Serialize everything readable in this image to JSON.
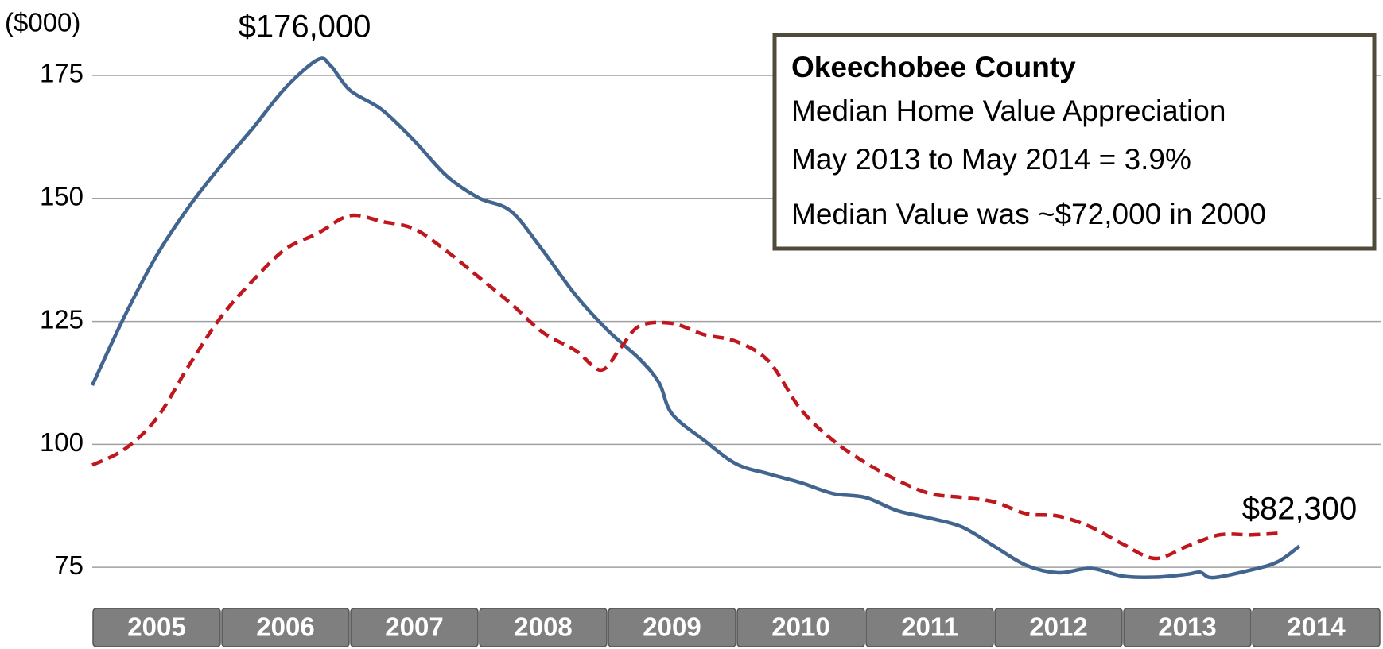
{
  "chart_data": {
    "type": "line",
    "y_label": "($000)",
    "annotations": [
      "$176,000",
      "$82,300"
    ],
    "info_box": {
      "title": "Okeechobee County",
      "lines": [
        "Median Home Value Appreciation",
        "May 2013 to May 2014 = 3.9%",
        "Median Value was ~$72,000 in 2000"
      ]
    },
    "xlim": [
      2005,
      2015
    ],
    "xticks": [
      2005,
      2006,
      2007,
      2008,
      2009,
      2010,
      2011,
      2012,
      2013,
      2014
    ],
    "ylim": [
      68.4,
      185.5
    ],
    "yticks": [
      75,
      100,
      125,
      150,
      175
    ],
    "grid": true,
    "series": [
      {
        "color": "#41658f",
        "dash": false,
        "x": [
          2005.0,
          2005.25,
          2005.5,
          2005.75,
          2006.0,
          2006.25,
          2006.5,
          2006.75,
          2006.85,
          2007.0,
          2007.25,
          2007.5,
          2007.75,
          2008.0,
          2008.25,
          2008.5,
          2008.75,
          2009.0,
          2009.25,
          2009.4,
          2009.5,
          2009.75,
          2010.0,
          2010.25,
          2010.5,
          2010.75,
          2011.0,
          2011.25,
          2011.5,
          2011.75,
          2012.0,
          2012.25,
          2012.5,
          2012.75,
          2013.0,
          2013.25,
          2013.5,
          2013.6,
          2013.7,
          2014.0,
          2014.2,
          2014.37
        ],
        "values": [
          112,
          126,
          138.4,
          148.3,
          156.7,
          164.4,
          172.5,
          178.2,
          177,
          172,
          168,
          161.7,
          154.6,
          150.1,
          147.4,
          139.3,
          130.4,
          123.2,
          117.3,
          112.5,
          106.2,
          100.8,
          96,
          94,
          92.2,
          90,
          89.2,
          86.5,
          85,
          83.2,
          79.3,
          75.4,
          73.9,
          74.8,
          73.2,
          73,
          73.6,
          74,
          72.9,
          74.5,
          76.1,
          79.3
        ]
      },
      {
        "color": "#c0161d",
        "dash": true,
        "x": [
          2005.0,
          2005.25,
          2005.5,
          2005.75,
          2006.0,
          2006.25,
          2006.5,
          2006.75,
          2007.0,
          2007.25,
          2007.5,
          2007.75,
          2008.0,
          2008.25,
          2008.5,
          2008.75,
          2008.95,
          2009.1,
          2009.25,
          2009.5,
          2009.75,
          2010.0,
          2010.25,
          2010.5,
          2010.75,
          2011.0,
          2011.25,
          2011.5,
          2011.75,
          2012.0,
          2012.25,
          2012.5,
          2012.75,
          2013.0,
          2013.25,
          2013.5,
          2013.75,
          2014.0,
          2014.25
        ],
        "values": [
          95.8,
          99,
          105.3,
          116,
          125.9,
          133.4,
          139.7,
          142.9,
          146.5,
          145.3,
          143.8,
          139.3,
          134,
          128.6,
          122.7,
          119.1,
          115.1,
          119.6,
          124.1,
          124.6,
          122.3,
          120.9,
          116.9,
          107.1,
          100.8,
          96.3,
          92.7,
          90,
          89.2,
          88.3,
          85.9,
          85.4,
          83.2,
          79.7,
          76.8,
          79.3,
          81.6,
          81.6,
          82
        ]
      }
    ]
  }
}
